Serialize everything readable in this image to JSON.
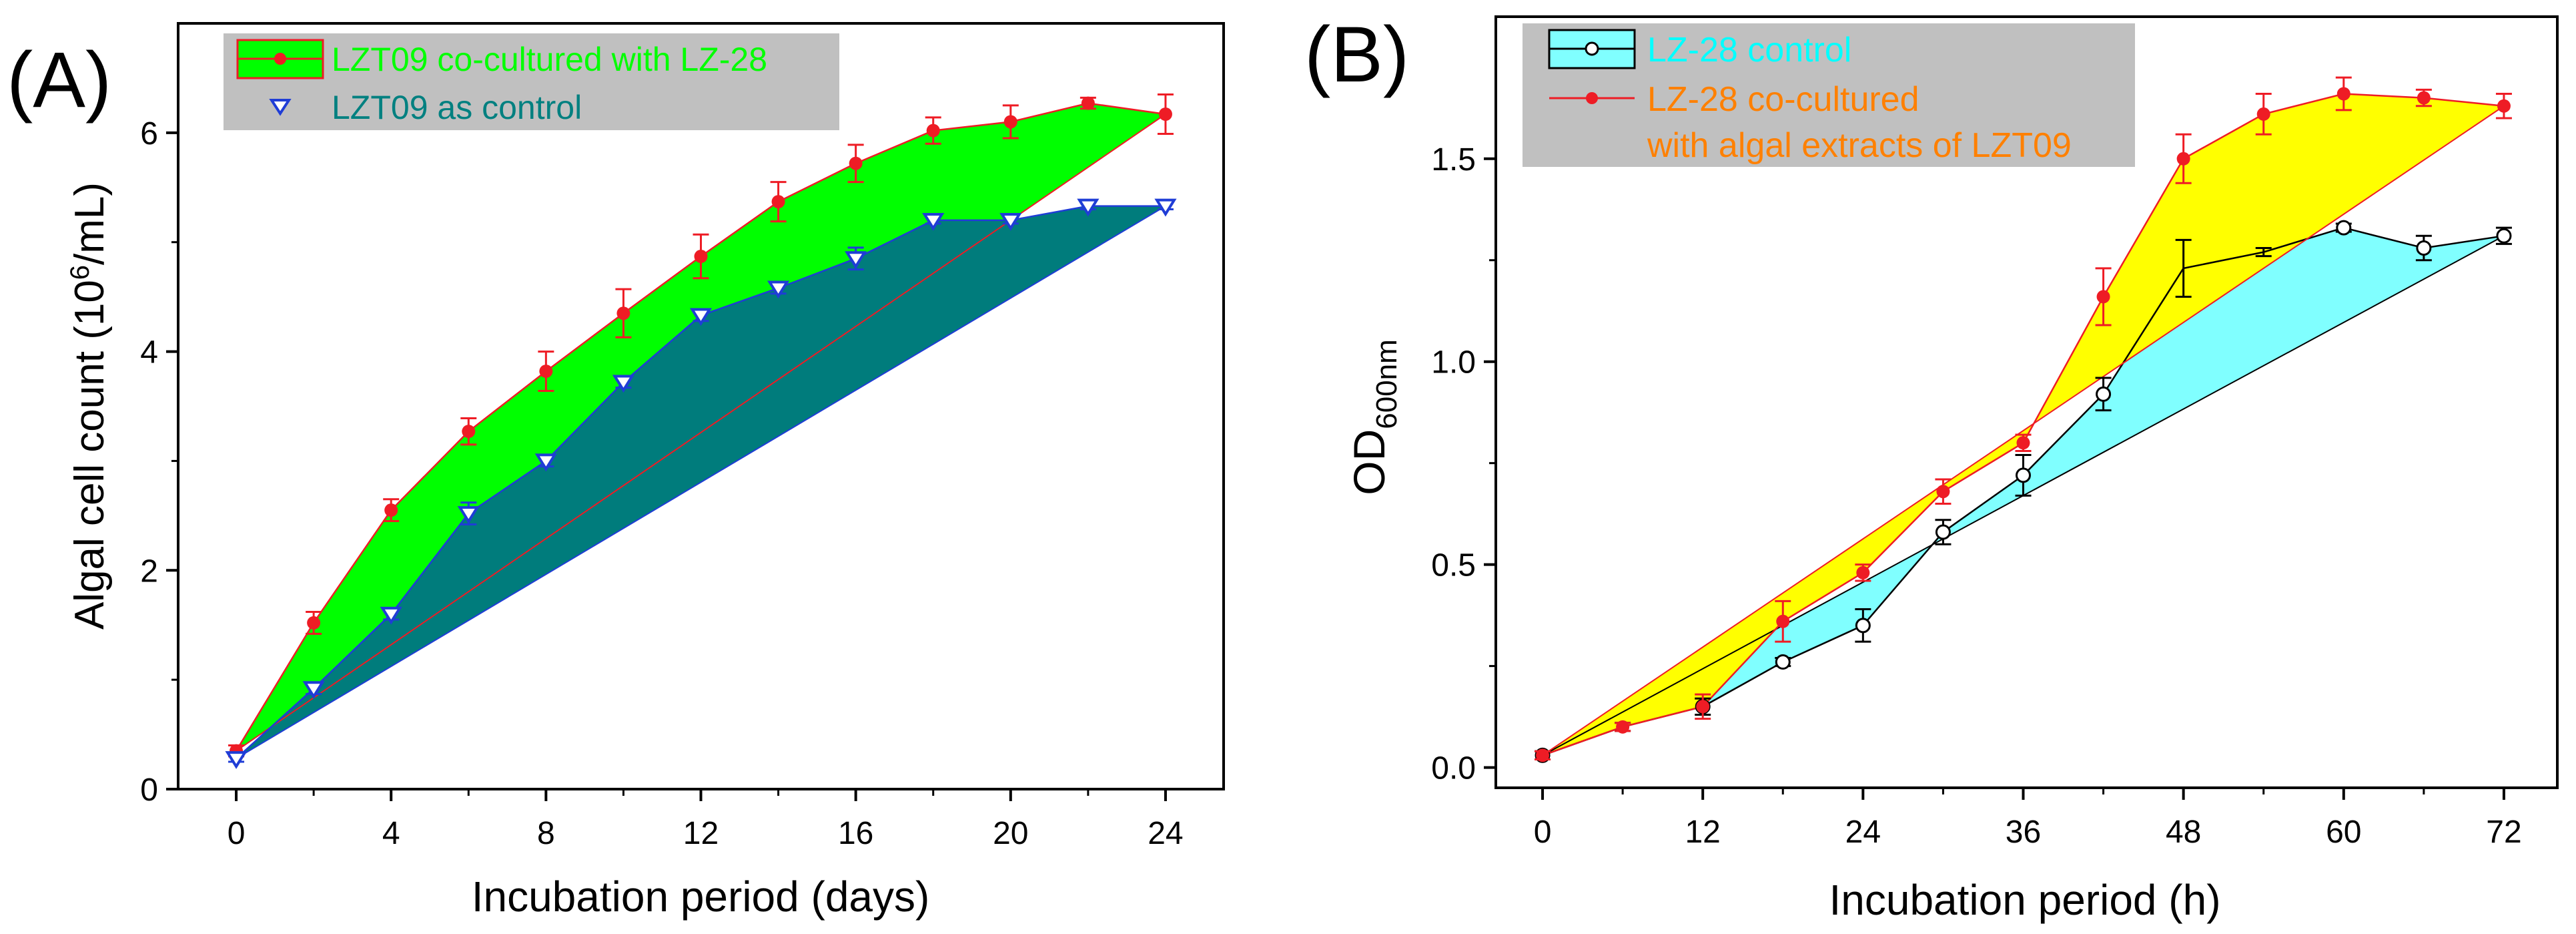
{
  "panels": [
    {
      "label": "(A)",
      "legend": [
        {
          "label": "LZT09 co-cultured with LZ-28",
          "marker": "filled-circle"
        },
        {
          "label": "LZT09 as control",
          "marker": "open-down-triangle"
        }
      ]
    },
    {
      "label": "(B)",
      "legend": [
        {
          "label": "LZ-28 control",
          "marker": "open-circle"
        },
        {
          "label": "LZ-28 co-cultured",
          "marker": "filled-circle"
        },
        {
          "label": "with algal extracts of LZT09",
          "marker": ""
        }
      ]
    }
  ],
  "colors": {
    "red": "#ee1c25",
    "blue": "#1f3dd6",
    "green_fill": "#00ff00",
    "teal_fill": "#007c7c",
    "yellow_fill": "#ffff00",
    "cyan_fill": "#80ffff",
    "legend_bg": "#c0c0c0",
    "legend_text_green": "#00ff00",
    "legend_text_teal": "#008080",
    "legend_text_cyan": "#00ffff",
    "legend_text_orange": "#ff8000"
  },
  "chart_data": [
    {
      "type": "line",
      "panel": "(A)",
      "xlabel": "Incubation period (days)",
      "ylabel_parts": [
        "Algal cell count (10",
        "6",
        "/mL)"
      ],
      "xlim": [
        -1.5,
        25.5
      ],
      "ylim": [
        0,
        7
      ],
      "xticks": [
        0,
        4,
        8,
        12,
        16,
        20,
        24
      ],
      "yticks": [
        0,
        2,
        4,
        6
      ],
      "grid": false,
      "legend_position": "top-left",
      "fill_between": "each series and the straight line joining its first and last points",
      "series": [
        {
          "name": "LZT09 co-cultured with LZ-28",
          "marker": "filled-circle",
          "color": "#ee1c25",
          "fill": "#00ff00",
          "x": [
            0,
            2,
            4,
            6,
            8,
            10,
            12,
            14,
            16,
            18,
            20,
            22,
            24
          ],
          "y": [
            0.35,
            1.52,
            2.55,
            3.27,
            3.82,
            4.35,
            4.87,
            5.37,
            5.72,
            6.02,
            6.1,
            6.27,
            6.17
          ],
          "err": [
            0.05,
            0.1,
            0.1,
            0.12,
            0.18,
            0.22,
            0.2,
            0.18,
            0.17,
            0.12,
            0.15,
            0.05,
            0.18
          ]
        },
        {
          "name": "LZT09 as control",
          "marker": "open-down-triangle",
          "color": "#1f3dd6",
          "fill": "#007c7c",
          "x": [
            0,
            2,
            4,
            6,
            8,
            10,
            12,
            14,
            16,
            18,
            20,
            22,
            24
          ],
          "y": [
            0.28,
            0.92,
            1.6,
            2.52,
            3.0,
            3.72,
            4.33,
            4.58,
            4.85,
            5.2,
            5.2,
            5.33,
            5.33
          ],
          "err": [
            0.03,
            0.05,
            0.05,
            0.1,
            0.05,
            0.05,
            0.05,
            0.05,
            0.1,
            0.03,
            0.03,
            0.03,
            0.03
          ]
        }
      ]
    },
    {
      "type": "line",
      "panel": "(B)",
      "xlabel": "Incubation period (h)",
      "ylabel_parts": [
        "OD",
        "600nm"
      ],
      "xlim": [
        -3.5,
        76
      ],
      "ylim": [
        -0.05,
        1.85
      ],
      "xticks": [
        0,
        12,
        24,
        36,
        48,
        60,
        72
      ],
      "yticks": [
        0.0,
        0.5,
        1.0,
        1.5
      ],
      "ytick_labels": [
        "0.0",
        "0.5",
        "1.0",
        "1.5"
      ],
      "grid": false,
      "legend_position": "top-left",
      "fill_between": "each series and the straight line joining its first and last points",
      "series": [
        {
          "name": "LZ-28 control",
          "marker": "open-circle",
          "color": "#000000",
          "fill": "#80ffff",
          "x": [
            0,
            6,
            12,
            18,
            24,
            30,
            36,
            42,
            48,
            54,
            60,
            66,
            72
          ],
          "y": [
            0.03,
            0.1,
            0.15,
            0.26,
            0.35,
            0.58,
            0.72,
            0.92,
            1.23,
            1.27,
            1.33,
            1.28,
            1.31
          ],
          "err": [
            0.01,
            0.01,
            0.02,
            0.01,
            0.04,
            0.03,
            0.05,
            0.04,
            0.07,
            0.01,
            0.01,
            0.03,
            0.02
          ],
          "marker_hidden": [
            false,
            true,
            false,
            false,
            false,
            false,
            false,
            false,
            true,
            true,
            false,
            false,
            false
          ]
        },
        {
          "name": "LZ-28 co-cultured with algal extracts of LZT09",
          "marker": "filled-circle",
          "color": "#ee1c25",
          "fill": "#ffff00",
          "x": [
            0,
            6,
            12,
            18,
            24,
            30,
            36,
            42,
            48,
            54,
            60,
            66,
            72
          ],
          "y": [
            0.03,
            0.1,
            0.15,
            0.36,
            0.48,
            0.68,
            0.8,
            1.16,
            1.5,
            1.61,
            1.66,
            1.65,
            1.63
          ],
          "err": [
            0.01,
            0.01,
            0.03,
            0.05,
            0.02,
            0.03,
            0.02,
            0.07,
            0.06,
            0.05,
            0.04,
            0.02,
            0.03
          ]
        }
      ]
    }
  ]
}
